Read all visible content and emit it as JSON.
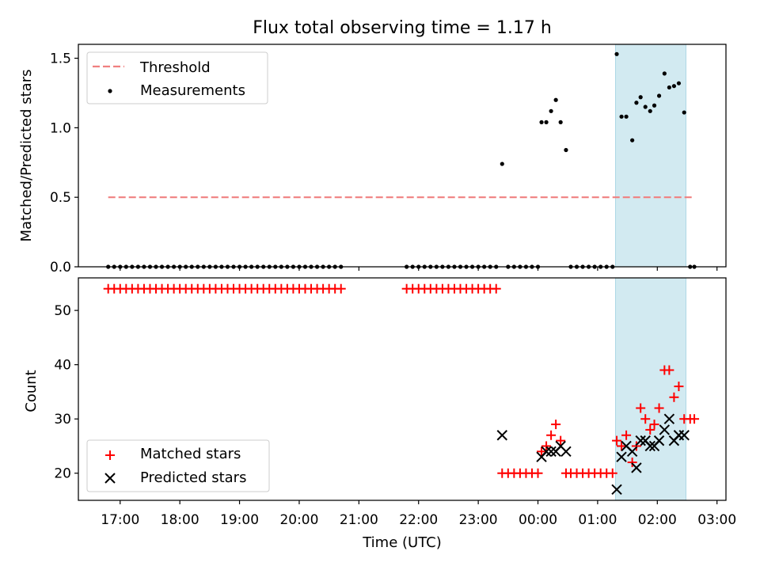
{
  "title": "Flux total observing time = 1.17 h",
  "chart_data": [
    {
      "type": "scatter",
      "ylabel": "Matched/Predicted stars",
      "xlabel": "",
      "x_unit": "hours from 00:00 UTC",
      "xlim": [
        -7.7,
        3.15
      ],
      "ylim": [
        0,
        1.6
      ],
      "yticks": [
        0.0,
        0.5,
        1.0,
        1.5
      ],
      "ytick_labels": [
        "0.0",
        "0.5",
        "1.0",
        "1.5"
      ],
      "shaded_region": {
        "x": [
          1.3,
          2.48
        ],
        "color": "#add8e6"
      },
      "legend": {
        "placement": "upper left",
        "entries": [
          "Threshold",
          "Measurements"
        ]
      },
      "series": [
        {
          "name": "Threshold",
          "style": "dashed-line",
          "color": "#f08080",
          "points": [
            [
              -7.2,
              0.5
            ],
            [
              2.62,
              0.5
            ]
          ]
        },
        {
          "name": "Measurements",
          "style": "dot",
          "color": "#000000",
          "points": [
            [
              -7.2,
              0
            ],
            [
              -7.1,
              0
            ],
            [
              -7,
              0
            ],
            [
              -6.9,
              0
            ],
            [
              -6.8,
              0
            ],
            [
              -6.7,
              0
            ],
            [
              -6.6,
              0
            ],
            [
              -6.5,
              0
            ],
            [
              -6.4,
              0
            ],
            [
              -6.3,
              0
            ],
            [
              -6.2,
              0
            ],
            [
              -6.1,
              0
            ],
            [
              -6,
              0
            ],
            [
              -5.9,
              0
            ],
            [
              -5.8,
              0
            ],
            [
              -5.7,
              0
            ],
            [
              -5.6,
              0
            ],
            [
              -5.5,
              0
            ],
            [
              -5.4,
              0
            ],
            [
              -5.3,
              0
            ],
            [
              -5.2,
              0
            ],
            [
              -5.1,
              0
            ],
            [
              -5,
              0
            ],
            [
              -4.9,
              0
            ],
            [
              -4.8,
              0
            ],
            [
              -4.7,
              0
            ],
            [
              -4.6,
              0
            ],
            [
              -4.5,
              0
            ],
            [
              -4.4,
              0
            ],
            [
              -4.3,
              0
            ],
            [
              -4.2,
              0
            ],
            [
              -4.1,
              0
            ],
            [
              -4,
              0
            ],
            [
              -3.9,
              0
            ],
            [
              -3.8,
              0
            ],
            [
              -3.7,
              0
            ],
            [
              -3.6,
              0
            ],
            [
              -3.5,
              0
            ],
            [
              -3.4,
              0
            ],
            [
              -3.3,
              0
            ],
            [
              -2.2,
              0
            ],
            [
              -2.1,
              0
            ],
            [
              -2,
              0
            ],
            [
              -1.9,
              0
            ],
            [
              -1.8,
              0
            ],
            [
              -1.7,
              0
            ],
            [
              -1.6,
              0
            ],
            [
              -1.5,
              0
            ],
            [
              -1.4,
              0
            ],
            [
              -1.3,
              0
            ],
            [
              -1.2,
              0
            ],
            [
              -1.1,
              0
            ],
            [
              -1,
              0
            ],
            [
              -0.9,
              0
            ],
            [
              -0.8,
              0
            ],
            [
              -0.7,
              0
            ],
            [
              -0.6,
              0.74
            ],
            [
              -0.5,
              0
            ],
            [
              -0.4,
              0
            ],
            [
              -0.3,
              0
            ],
            [
              -0.2,
              0
            ],
            [
              -0.1,
              0
            ],
            [
              0,
              0
            ],
            [
              0.06,
              1.04
            ],
            [
              0.14,
              1.04
            ],
            [
              0.22,
              1.12
            ],
            [
              0.3,
              1.2
            ],
            [
              0.38,
              1.04
            ],
            [
              0.47,
              0.84
            ],
            [
              0.55,
              0
            ],
            [
              0.65,
              0
            ],
            [
              0.75,
              0
            ],
            [
              0.85,
              0
            ],
            [
              0.95,
              0
            ],
            [
              1.05,
              0
            ],
            [
              1.15,
              0
            ],
            [
              1.25,
              0
            ],
            [
              1.32,
              1.53
            ],
            [
              1.4,
              1.08
            ],
            [
              1.48,
              1.08
            ],
            [
              1.58,
              0.91
            ],
            [
              1.65,
              1.18
            ],
            [
              1.72,
              1.22
            ],
            [
              1.8,
              1.15
            ],
            [
              1.88,
              1.12
            ],
            [
              1.95,
              1.16
            ],
            [
              2.03,
              1.23
            ],
            [
              2.12,
              1.39
            ],
            [
              2.2,
              1.29
            ],
            [
              2.28,
              1.3
            ],
            [
              2.36,
              1.32
            ],
            [
              2.45,
              1.11
            ],
            [
              2.55,
              0
            ],
            [
              2.62,
              0
            ]
          ]
        }
      ]
    },
    {
      "type": "scatter",
      "ylabel": "Count",
      "xlabel": "Time (UTC)",
      "x_unit": "hours from 00:00 UTC",
      "xlim": [
        -7.7,
        3.15
      ],
      "ylim": [
        15,
        56
      ],
      "yticks": [
        20,
        30,
        40,
        50
      ],
      "ytick_labels": [
        "20",
        "30",
        "40",
        "50"
      ],
      "xticks": [
        -7,
        -6,
        -5,
        -4,
        -3,
        -2,
        -1,
        0,
        1,
        2,
        3
      ],
      "xtick_labels": [
        "17:00",
        "18:00",
        "19:00",
        "20:00",
        "21:00",
        "22:00",
        "23:00",
        "00:00",
        "01:00",
        "02:00",
        "03:00"
      ],
      "shaded_region": {
        "x": [
          1.3,
          2.48
        ],
        "color": "#add8e6"
      },
      "legend": {
        "placement": "lower left",
        "entries": [
          "Matched stars",
          "Predicted stars"
        ]
      },
      "series": [
        {
          "name": "Matched stars",
          "marker": "plus",
          "color": "#ff0000",
          "points": [
            [
              -7.2,
              54
            ],
            [
              -7.1,
              54
            ],
            [
              -7,
              54
            ],
            [
              -6.9,
              54
            ],
            [
              -6.8,
              54
            ],
            [
              -6.7,
              54
            ],
            [
              -6.6,
              54
            ],
            [
              -6.5,
              54
            ],
            [
              -6.4,
              54
            ],
            [
              -6.3,
              54
            ],
            [
              -6.2,
              54
            ],
            [
              -6.1,
              54
            ],
            [
              -6,
              54
            ],
            [
              -5.9,
              54
            ],
            [
              -5.8,
              54
            ],
            [
              -5.7,
              54
            ],
            [
              -5.6,
              54
            ],
            [
              -5.5,
              54
            ],
            [
              -5.4,
              54
            ],
            [
              -5.3,
              54
            ],
            [
              -5.2,
              54
            ],
            [
              -5.1,
              54
            ],
            [
              -5,
              54
            ],
            [
              -4.9,
              54
            ],
            [
              -4.8,
              54
            ],
            [
              -4.7,
              54
            ],
            [
              -4.6,
              54
            ],
            [
              -4.5,
              54
            ],
            [
              -4.4,
              54
            ],
            [
              -4.3,
              54
            ],
            [
              -4.2,
              54
            ],
            [
              -4.1,
              54
            ],
            [
              -4,
              54
            ],
            [
              -3.9,
              54
            ],
            [
              -3.8,
              54
            ],
            [
              -3.7,
              54
            ],
            [
              -3.6,
              54
            ],
            [
              -3.5,
              54
            ],
            [
              -3.4,
              54
            ],
            [
              -3.3,
              54
            ],
            [
              -2.2,
              54
            ],
            [
              -2.1,
              54
            ],
            [
              -2,
              54
            ],
            [
              -1.9,
              54
            ],
            [
              -1.8,
              54
            ],
            [
              -1.7,
              54
            ],
            [
              -1.6,
              54
            ],
            [
              -1.5,
              54
            ],
            [
              -1.4,
              54
            ],
            [
              -1.3,
              54
            ],
            [
              -1.2,
              54
            ],
            [
              -1.1,
              54
            ],
            [
              -1,
              54
            ],
            [
              -0.9,
              54
            ],
            [
              -0.8,
              54
            ],
            [
              -0.7,
              54
            ],
            [
              -0.6,
              20
            ],
            [
              -0.5,
              20
            ],
            [
              -0.4,
              20
            ],
            [
              -0.3,
              20
            ],
            [
              -0.2,
              20
            ],
            [
              -0.1,
              20
            ],
            [
              0,
              20
            ],
            [
              0.06,
              24
            ],
            [
              0.14,
              25
            ],
            [
              0.22,
              27
            ],
            [
              0.3,
              29
            ],
            [
              0.38,
              26
            ],
            [
              0.47,
              20
            ],
            [
              0.55,
              20
            ],
            [
              0.65,
              20
            ],
            [
              0.75,
              20
            ],
            [
              0.85,
              20
            ],
            [
              0.95,
              20
            ],
            [
              1.05,
              20
            ],
            [
              1.15,
              20
            ],
            [
              1.25,
              20
            ],
            [
              1.32,
              26
            ],
            [
              1.4,
              25
            ],
            [
              1.48,
              27
            ],
            [
              1.58,
              22
            ],
            [
              1.65,
              25
            ],
            [
              1.72,
              32
            ],
            [
              1.8,
              30
            ],
            [
              1.88,
              28
            ],
            [
              1.95,
              29
            ],
            [
              2.03,
              32
            ],
            [
              2.12,
              39
            ],
            [
              2.2,
              39
            ],
            [
              2.28,
              34
            ],
            [
              2.36,
              36
            ],
            [
              2.45,
              30
            ],
            [
              2.55,
              30
            ],
            [
              2.62,
              30
            ]
          ]
        },
        {
          "name": "Predicted stars",
          "marker": "x",
          "color": "#000000",
          "points": [
            [
              -0.6,
              27
            ],
            [
              0.06,
              23
            ],
            [
              0.14,
              24
            ],
            [
              0.22,
              24
            ],
            [
              0.3,
              24
            ],
            [
              0.38,
              25
            ],
            [
              0.47,
              24
            ],
            [
              1.32,
              17
            ],
            [
              1.4,
              23
            ],
            [
              1.48,
              25
            ],
            [
              1.58,
              24
            ],
            [
              1.65,
              21
            ],
            [
              1.72,
              26
            ],
            [
              1.8,
              26
            ],
            [
              1.88,
              25
            ],
            [
              1.95,
              25
            ],
            [
              2.03,
              26
            ],
            [
              2.12,
              28
            ],
            [
              2.2,
              30
            ],
            [
              2.28,
              26
            ],
            [
              2.36,
              27
            ],
            [
              2.45,
              27
            ]
          ]
        }
      ]
    }
  ]
}
